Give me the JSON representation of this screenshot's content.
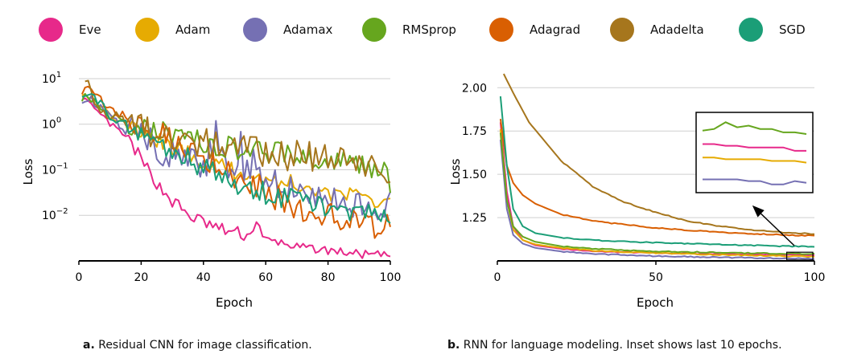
{
  "legend": [
    {
      "name": "Eve",
      "color": "#e7298a"
    },
    {
      "name": "Adam",
      "color": "#e6ab02"
    },
    {
      "name": "Adamax",
      "color": "#7570b3"
    },
    {
      "name": "RMSprop",
      "color": "#66a61e"
    },
    {
      "name": "Adagrad",
      "color": "#d95f02"
    },
    {
      "name": "Adadelta",
      "color": "#a6761d"
    },
    {
      "name": "SGD",
      "color": "#1b9e77"
    }
  ],
  "chart_data": [
    {
      "type": "line",
      "xlabel": "Epoch",
      "ylabel": "Loss",
      "yscale": "log",
      "xlim": [
        0,
        100
      ],
      "ylim": [
        0.001,
        15
      ],
      "xticks": [
        "0",
        "20",
        "40",
        "60",
        "80",
        "100"
      ],
      "ytick_labels": [
        {
          "base": "10",
          "exp": "1"
        },
        {
          "base": "10",
          "exp": "0"
        },
        {
          "base": "10",
          "exp": "−1"
        },
        {
          "base": "10",
          "exp": "−2"
        }
      ],
      "grid": "horizontal",
      "series": [
        {
          "name": "Eve",
          "points": [
            [
              1,
              4.0
            ],
            [
              5,
              2.0
            ],
            [
              10,
              1.0
            ],
            [
              14,
              0.6
            ],
            [
              17,
              0.35
            ],
            [
              20,
              0.15
            ],
            [
              23,
              0.08
            ],
            [
              26,
              0.04
            ],
            [
              30,
              0.02
            ],
            [
              35,
              0.01
            ],
            [
              40,
              0.007
            ],
            [
              45,
              0.005
            ],
            [
              50,
              0.0042
            ],
            [
              55,
              0.0035
            ],
            [
              57,
              0.008
            ],
            [
              59,
              0.003
            ],
            [
              65,
              0.0025
            ],
            [
              70,
              0.002
            ],
            [
              80,
              0.0017
            ],
            [
              90,
              0.0014
            ],
            [
              100,
              0.0013
            ]
          ]
        },
        {
          "name": "Adam",
          "points": [
            [
              1,
              5.0
            ],
            [
              10,
              1.5
            ],
            [
              20,
              0.6
            ],
            [
              30,
              0.3
            ],
            [
              40,
              0.15
            ],
            [
              50,
              0.09
            ],
            [
              60,
              0.06
            ],
            [
              70,
              0.05
            ],
            [
              80,
              0.03
            ],
            [
              90,
              0.025
            ],
            [
              100,
              0.02
            ]
          ]
        },
        {
          "name": "Adamax",
          "points": [
            [
              1,
              4.0
            ],
            [
              8,
              2.0
            ],
            [
              15,
              0.8
            ],
            [
              20,
              0.6
            ],
            [
              25,
              0.3
            ],
            [
              30,
              0.2
            ],
            [
              38,
              0.12
            ],
            [
              45,
              0.15
            ],
            [
              50,
              0.1
            ],
            [
              60,
              0.06
            ],
            [
              70,
              0.04
            ],
            [
              80,
              0.02
            ],
            [
              90,
              0.015
            ],
            [
              100,
              0.015
            ]
          ]
        },
        {
          "name": "RMSprop",
          "points": [
            [
              1,
              4.0
            ],
            [
              10,
              1.5
            ],
            [
              20,
              0.8
            ],
            [
              30,
              0.6
            ],
            [
              40,
              0.4
            ],
            [
              50,
              0.3
            ],
            [
              60,
              0.25
            ],
            [
              70,
              0.2
            ],
            [
              80,
              0.17
            ],
            [
              90,
              0.13
            ],
            [
              98,
              0.1
            ],
            [
              100,
              0.04
            ]
          ]
        },
        {
          "name": "Adagrad",
          "points": [
            [
              1,
              6.0
            ],
            [
              10,
              2.0
            ],
            [
              20,
              0.9
            ],
            [
              30,
              0.5
            ],
            [
              40,
              0.2
            ],
            [
              50,
              0.08
            ],
            [
              60,
              0.03
            ],
            [
              70,
              0.015
            ],
            [
              80,
              0.01
            ],
            [
              90,
              0.007
            ],
            [
              100,
              0.005
            ]
          ]
        },
        {
          "name": "Adadelta",
          "points": [
            [
              2,
              12.0
            ],
            [
              5,
              3.0
            ],
            [
              10,
              1.5
            ],
            [
              20,
              0.8
            ],
            [
              30,
              0.5
            ],
            [
              40,
              0.4
            ],
            [
              50,
              0.3
            ],
            [
              60,
              0.25
            ],
            [
              70,
              0.2
            ],
            [
              80,
              0.17
            ],
            [
              90,
              0.14
            ],
            [
              100,
              0.1
            ]
          ]
        },
        {
          "name": "SGD",
          "points": [
            [
              1,
              5.0
            ],
            [
              10,
              1.5
            ],
            [
              20,
              0.6
            ],
            [
              30,
              0.25
            ],
            [
              40,
              0.1
            ],
            [
              50,
              0.05
            ],
            [
              60,
              0.03
            ],
            [
              70,
              0.02
            ],
            [
              80,
              0.015
            ],
            [
              90,
              0.012
            ],
            [
              100,
              0.01
            ]
          ]
        }
      ],
      "caption_letter": "a.",
      "caption_text": "Residual CNN for image classification."
    },
    {
      "type": "line",
      "xlabel": "Epoch",
      "ylabel": "Loss",
      "xlim": [
        0,
        100
      ],
      "ylim": [
        1.0,
        2.08
      ],
      "xticks": [
        "0",
        "50",
        "100"
      ],
      "yticks": [
        "1.25",
        "1.50",
        "1.75",
        "2.00"
      ],
      "grid": "horizontal",
      "series": [
        {
          "name": "Eve",
          "points": [
            [
              1,
              1.8
            ],
            [
              3,
              1.4
            ],
            [
              5,
              1.2
            ],
            [
              8,
              1.12
            ],
            [
              12,
              1.09
            ],
            [
              20,
              1.07
            ],
            [
              30,
              1.055
            ],
            [
              50,
              1.045
            ],
            [
              70,
              1.04
            ],
            [
              90,
              1.035
            ],
            [
              100,
              1.033
            ]
          ]
        },
        {
          "name": "Adam",
          "points": [
            [
              1,
              1.76
            ],
            [
              3,
              1.35
            ],
            [
              5,
              1.18
            ],
            [
              8,
              1.12
            ],
            [
              12,
              1.095
            ],
            [
              20,
              1.075
            ],
            [
              30,
              1.06
            ],
            [
              50,
              1.045
            ],
            [
              70,
              1.035
            ],
            [
              90,
              1.028
            ],
            [
              100,
              1.025
            ]
          ]
        },
        {
          "name": "Adamax",
          "points": [
            [
              1,
              1.7
            ],
            [
              3,
              1.3
            ],
            [
              5,
              1.15
            ],
            [
              8,
              1.1
            ],
            [
              12,
              1.075
            ],
            [
              20,
              1.055
            ],
            [
              30,
              1.04
            ],
            [
              50,
              1.028
            ],
            [
              70,
              1.02
            ],
            [
              90,
              1.015
            ],
            [
              100,
              1.013
            ]
          ]
        },
        {
          "name": "RMSprop",
          "points": [
            [
              1,
              1.74
            ],
            [
              3,
              1.35
            ],
            [
              5,
              1.2
            ],
            [
              8,
              1.14
            ],
            [
              12,
              1.11
            ],
            [
              20,
              1.085
            ],
            [
              30,
              1.07
            ],
            [
              50,
              1.055
            ],
            [
              70,
              1.048
            ],
            [
              90,
              1.042
            ],
            [
              100,
              1.04
            ]
          ]
        },
        {
          "name": "Adagrad",
          "points": [
            [
              1,
              1.82
            ],
            [
              3,
              1.55
            ],
            [
              5,
              1.45
            ],
            [
              8,
              1.38
            ],
            [
              12,
              1.33
            ],
            [
              20,
              1.27
            ],
            [
              30,
              1.23
            ],
            [
              50,
              1.19
            ],
            [
              70,
              1.165
            ],
            [
              90,
              1.15
            ],
            [
              100,
              1.145
            ]
          ]
        },
        {
          "name": "Adadelta",
          "points": [
            [
              2,
              2.08
            ],
            [
              5,
              1.97
            ],
            [
              10,
              1.8
            ],
            [
              20,
              1.58
            ],
            [
              30,
              1.43
            ],
            [
              40,
              1.34
            ],
            [
              50,
              1.28
            ],
            [
              60,
              1.23
            ],
            [
              70,
              1.2
            ],
            [
              80,
              1.18
            ],
            [
              90,
              1.165
            ],
            [
              100,
              1.155
            ]
          ]
        },
        {
          "name": "SGD",
          "points": [
            [
              1,
              1.95
            ],
            [
              3,
              1.55
            ],
            [
              5,
              1.3
            ],
            [
              8,
              1.2
            ],
            [
              12,
              1.16
            ],
            [
              20,
              1.135
            ],
            [
              30,
              1.12
            ],
            [
              50,
              1.105
            ],
            [
              70,
              1.095
            ],
            [
              90,
              1.085
            ],
            [
              100,
              1.082
            ]
          ]
        }
      ],
      "inset": {
        "x_range": [
          90,
          100
        ],
        "series": [
          {
            "name": "RMSprop",
            "values": [
              1.044,
              1.045,
              1.049,
              1.046,
              1.047,
              1.045,
              1.045,
              1.043,
              1.043,
              1.042
            ]
          },
          {
            "name": "Eve",
            "values": [
              1.036,
              1.036,
              1.035,
              1.035,
              1.034,
              1.034,
              1.034,
              1.034,
              1.032,
              1.032
            ]
          },
          {
            "name": "Adam",
            "values": [
              1.028,
              1.028,
              1.027,
              1.027,
              1.027,
              1.027,
              1.026,
              1.026,
              1.026,
              1.025
            ]
          },
          {
            "name": "Adamax",
            "values": [
              1.015,
              1.015,
              1.015,
              1.015,
              1.014,
              1.014,
              1.012,
              1.012,
              1.014,
              1.013
            ]
          }
        ]
      },
      "caption_letter": "b.",
      "caption_text": "RNN for language modeling. Inset shows last 10 epochs."
    }
  ]
}
